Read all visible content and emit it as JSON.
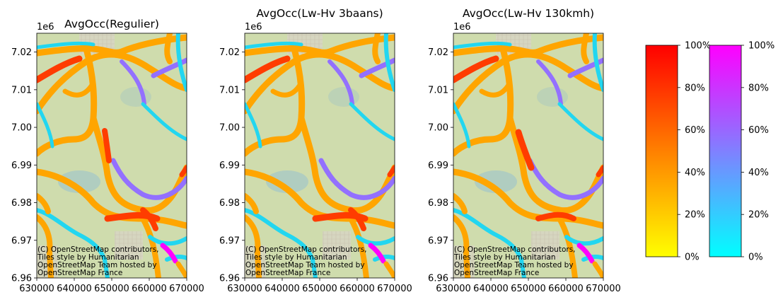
{
  "chart_data": {
    "type": "map",
    "panels": [
      {
        "title": "AvgOcc(Regulier)",
        "variant": "regulier",
        "x_offset_label": "",
        "y_offset_label": "1e6",
        "xlim": [
          630000,
          670000
        ],
        "ylim": [
          6960000,
          7025000
        ],
        "xticks": [
          "630000",
          "640000",
          "650000",
          "660000",
          "670000"
        ],
        "yticks": [
          "6.96",
          "6.97",
          "6.98",
          "6.99",
          "7.00",
          "7.01",
          "7.02"
        ],
        "attribution": [
          "(C) OpenStreetMap contributors,",
          "Tiles style by Humanitarian",
          "OpenStreetMap Team hosted by",
          "OpenStreetMap France"
        ]
      },
      {
        "title": "AvgOcc(Lw-Hv 3baans)",
        "variant": "3baans",
        "y_offset_label": "1e6",
        "xlim": [
          630000,
          670000
        ],
        "ylim": [
          6960000,
          7025000
        ],
        "xticks": [
          "630000",
          "640000",
          "650000",
          "660000",
          "670000"
        ],
        "yticks": [
          "6.96",
          "6.97",
          "6.98",
          "6.99",
          "7.00",
          "7.01",
          "7.02"
        ],
        "attribution": [
          "(C) OpenStreetMap contributors,",
          "Tiles style by Humanitarian",
          "OpenStreetMap Team hosted by",
          "OpenStreetMap France"
        ]
      },
      {
        "title": "AvgOcc(Lw-Hv 130kmh)",
        "variant": "130kmh",
        "y_offset_label": "1e6",
        "xlim": [
          630000,
          670000
        ],
        "ylim": [
          6960000,
          7025000
        ],
        "xticks": [
          "630000",
          "640000",
          "650000",
          "660000",
          "670000"
        ],
        "yticks": [
          "6.96",
          "6.97",
          "6.98",
          "6.99",
          "7.00",
          "7.01",
          "7.02"
        ],
        "attribution": [
          "(C) OpenStreetMap contributors,",
          "Tiles style by Humanitarian",
          "OpenStreetMap Team hosted by",
          "OpenStreetMap France"
        ]
      }
    ],
    "colorbars": [
      {
        "name": "yellow-red",
        "colors": [
          "#ffff00",
          "#ffbf00",
          "#ff8000",
          "#ff4000",
          "#ff0000"
        ],
        "ticks": [
          "0%",
          "20%",
          "40%",
          "60%",
          "80%",
          "100%"
        ]
      },
      {
        "name": "cyan-magenta",
        "colors": [
          "#00ffff",
          "#40bfff",
          "#8080ff",
          "#bf40ff",
          "#ff00ff"
        ],
        "ticks": [
          "0%",
          "20%",
          "40%",
          "60%",
          "80%",
          "100%"
        ]
      }
    ],
    "colors": {
      "map_background": "#cfdcad",
      "road_yellow": "#ffa500",
      "road_cyan": "#22d6f0",
      "road_purple": "#9370ff",
      "road_red": "#ff3c00",
      "road_magenta": "#ff00ff"
    }
  }
}
